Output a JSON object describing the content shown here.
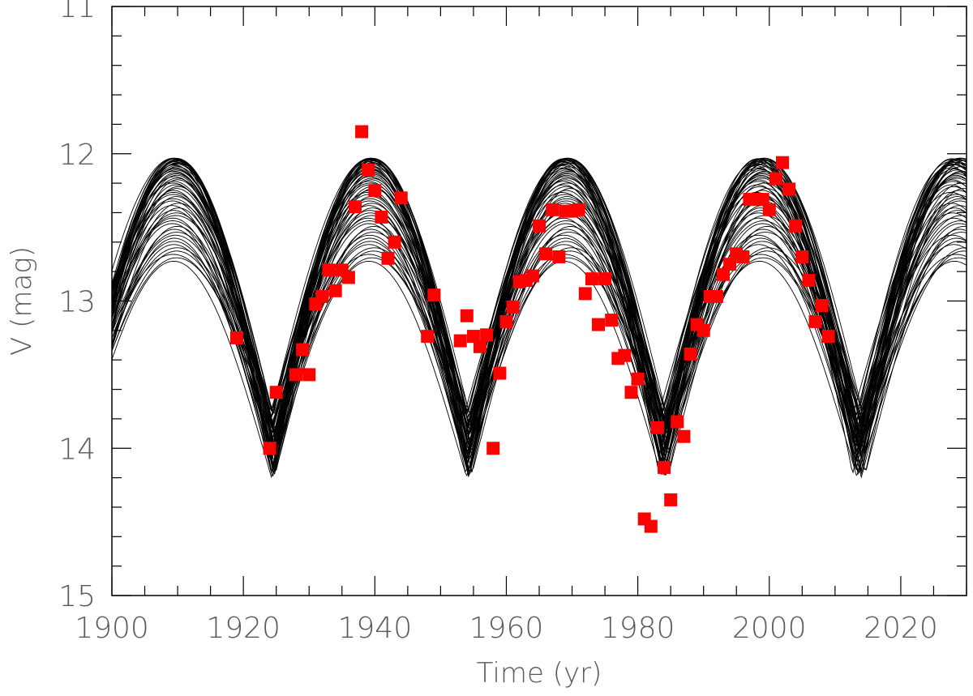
{
  "chart_data": {
    "type": "scatter",
    "title": "",
    "xlabel": "Time (yr)",
    "ylabel": "V (mag)",
    "xlim": [
      1900,
      2030
    ],
    "ylim": [
      15,
      11
    ],
    "y_axis_inverted": true,
    "grid": false,
    "legend": "none",
    "x_ticks": [
      1900,
      1920,
      1940,
      1960,
      1980,
      2000,
      2020
    ],
    "x_tick_labels": [
      "1900",
      "1920",
      "1940",
      "1960",
      "1980",
      "2000",
      "2020"
    ],
    "y_ticks": [
      11,
      12,
      13,
      14,
      15
    ],
    "y_tick_labels": [
      "11",
      "12",
      "13",
      "14",
      "15"
    ],
    "model_curves": {
      "color": "#000000",
      "count": 60,
      "period_yr": 29.7,
      "first_minimum_yr": 1924.5,
      "minimum_range_mag": [
        13.75,
        14.22
      ],
      "maximum_range_mag": [
        12.03,
        12.73
      ],
      "description": "ensemble of periodic model light curves"
    },
    "observations": {
      "color": "#ff0000",
      "marker": "square",
      "points": [
        [
          1919,
          13.25
        ],
        [
          1924,
          14.0
        ],
        [
          1925,
          13.62
        ],
        [
          1928,
          13.5
        ],
        [
          1929,
          13.33
        ],
        [
          1930,
          13.5
        ],
        [
          1931,
          13.02
        ],
        [
          1932,
          12.97
        ],
        [
          1933,
          12.79
        ],
        [
          1934,
          12.93
        ],
        [
          1935,
          12.79
        ],
        [
          1936,
          12.84
        ],
        [
          1937,
          12.36
        ],
        [
          1938,
          11.85
        ],
        [
          1939,
          12.11
        ],
        [
          1940,
          12.25
        ],
        [
          1941,
          12.43
        ],
        [
          1942,
          12.71
        ],
        [
          1943,
          12.6
        ],
        [
          1944,
          12.3
        ],
        [
          1948,
          13.24
        ],
        [
          1949,
          12.96
        ],
        [
          1953,
          13.27
        ],
        [
          1954,
          13.1
        ],
        [
          1955,
          13.24
        ],
        [
          1956,
          13.31
        ],
        [
          1957,
          13.23
        ],
        [
          1958,
          14.0
        ],
        [
          1959,
          13.49
        ],
        [
          1960,
          13.14
        ],
        [
          1961,
          13.04
        ],
        [
          1962,
          12.87
        ],
        [
          1963,
          12.86
        ],
        [
          1964,
          12.83
        ],
        [
          1965,
          12.49
        ],
        [
          1966,
          12.68
        ],
        [
          1967,
          12.38
        ],
        [
          1968,
          12.7
        ],
        [
          1969,
          12.39
        ],
        [
          1970,
          12.39
        ],
        [
          1971,
          12.38
        ],
        [
          1972,
          12.95
        ],
        [
          1973,
          12.85
        ],
        [
          1974,
          13.16
        ],
        [
          1975,
          12.85
        ],
        [
          1976,
          13.13
        ],
        [
          1977,
          13.39
        ],
        [
          1978,
          13.37
        ],
        [
          1979,
          13.62
        ],
        [
          1980,
          13.53
        ],
        [
          1981,
          14.48
        ],
        [
          1982,
          14.53
        ],
        [
          1983,
          13.86
        ],
        [
          1984,
          14.13
        ],
        [
          1985,
          14.35
        ],
        [
          1986,
          13.82
        ],
        [
          1987,
          13.92
        ],
        [
          1988,
          13.36
        ],
        [
          1989,
          13.16
        ],
        [
          1990,
          13.2
        ],
        [
          1991,
          12.97
        ],
        [
          1992,
          12.97
        ],
        [
          1993,
          12.82
        ],
        [
          1994,
          12.75
        ],
        [
          1995,
          12.68
        ],
        [
          1996,
          12.7
        ],
        [
          1997,
          12.31
        ],
        [
          1998,
          12.31
        ],
        [
          1999,
          12.31
        ],
        [
          2000,
          12.38
        ],
        [
          2001,
          12.17
        ],
        [
          2002,
          12.06
        ],
        [
          2003,
          12.24
        ],
        [
          2004,
          12.49
        ],
        [
          2005,
          12.7
        ],
        [
          2006,
          12.86
        ],
        [
          2007,
          13.14
        ],
        [
          2008,
          13.03
        ],
        [
          2009,
          13.24
        ]
      ]
    }
  }
}
